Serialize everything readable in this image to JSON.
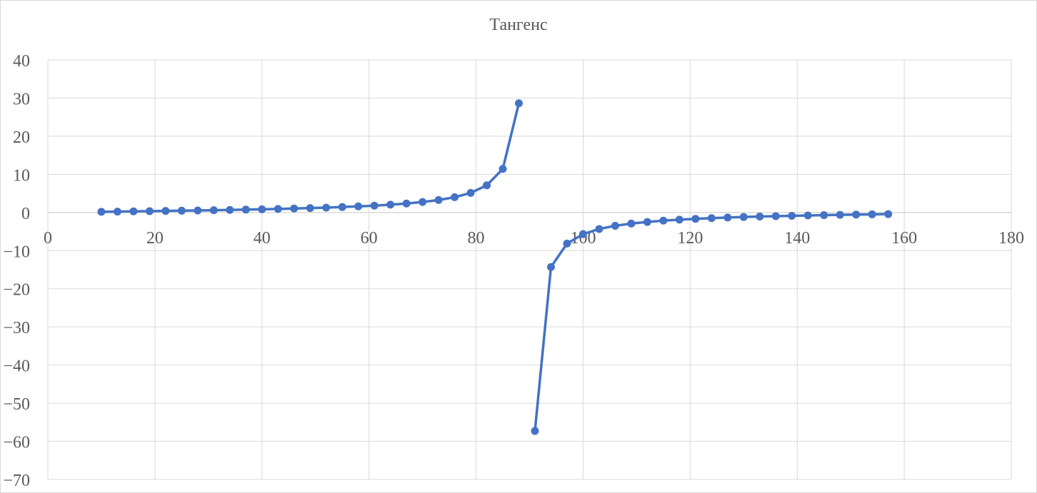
{
  "chart_data": {
    "type": "scatter",
    "title": "Тангенс",
    "xlabel": "",
    "ylabel": "",
    "xlim": [
      0,
      180
    ],
    "ylim": [
      -70,
      40
    ],
    "x_ticks": [
      0,
      20,
      40,
      60,
      80,
      100,
      120,
      140,
      160,
      180
    ],
    "y_ticks": [
      40,
      30,
      20,
      10,
      0,
      -10,
      -20,
      -30,
      -40,
      -50,
      -60,
      -70
    ],
    "grid": true,
    "legend": "none",
    "series": [
      {
        "color": "#4472c4",
        "marker": "circle",
        "segments": [
          [
            [
              10,
              0.18
            ],
            [
              13,
              0.23
            ],
            [
              16,
              0.29
            ],
            [
              19,
              0.34
            ],
            [
              22,
              0.4
            ],
            [
              25,
              0.47
            ],
            [
              28,
              0.53
            ],
            [
              31,
              0.6
            ],
            [
              34,
              0.67
            ],
            [
              37,
              0.75
            ],
            [
              40,
              0.84
            ],
            [
              43,
              0.93
            ],
            [
              46,
              1.04
            ],
            [
              49,
              1.15
            ],
            [
              52,
              1.28
            ],
            [
              55,
              1.43
            ],
            [
              58,
              1.6
            ],
            [
              61,
              1.8
            ],
            [
              64,
              2.05
            ],
            [
              67,
              2.36
            ],
            [
              70,
              2.75
            ],
            [
              73,
              3.27
            ],
            [
              76,
              4.01
            ],
            [
              79,
              5.14
            ],
            [
              82,
              7.12
            ],
            [
              85,
              11.43
            ],
            [
              88,
              28.64
            ]
          ],
          [
            [
              91,
              -57.29
            ],
            [
              94,
              -14.3
            ],
            [
              97,
              -8.14
            ],
            [
              100,
              -5.67
            ],
            [
              103,
              -4.33
            ],
            [
              106,
              -3.49
            ],
            [
              109,
              -2.9
            ],
            [
              112,
              -2.48
            ],
            [
              115,
              -2.14
            ],
            [
              118,
              -1.88
            ],
            [
              121,
              -1.66
            ],
            [
              124,
              -1.48
            ],
            [
              127,
              -1.33
            ],
            [
              130,
              -1.19
            ],
            [
              133,
              -1.07
            ],
            [
              136,
              -0.97
            ],
            [
              139,
              -0.87
            ],
            [
              142,
              -0.78
            ],
            [
              145,
              -0.7
            ],
            [
              148,
              -0.62
            ],
            [
              151,
              -0.55
            ],
            [
              154,
              -0.49
            ],
            [
              157,
              -0.42
            ]
          ]
        ]
      }
    ]
  }
}
